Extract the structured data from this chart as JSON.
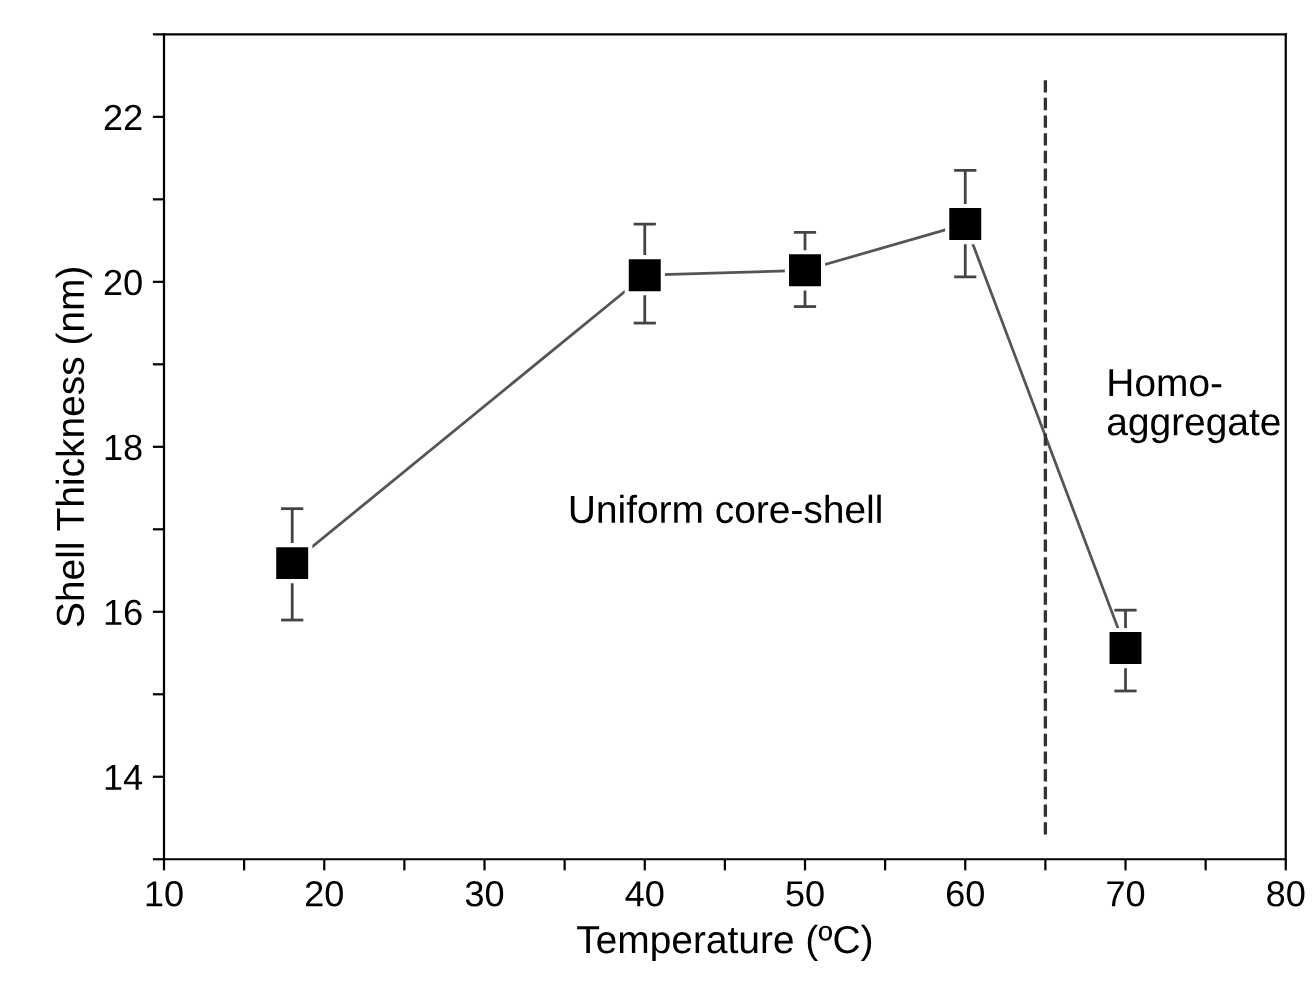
{
  "chart_data": {
    "type": "line",
    "xlabel": "Temperature (ºC)",
    "ylabel": "Shell Thickness (nm)",
    "x": [
      18,
      40,
      50,
      60,
      70
    ],
    "series": [
      {
        "color": "#000000",
        "values": [
          16.59,
          20.08,
          20.14,
          20.7,
          15.56
        ],
        "errors": [
          [
            15.9,
            17.25
          ],
          [
            19.5,
            20.7
          ],
          [
            19.7,
            20.6
          ],
          [
            20.06,
            21.35
          ],
          [
            15.04,
            16.02
          ]
        ]
      }
    ],
    "marker": "square",
    "line_style": "solid",
    "xlim": [
      10,
      80
    ],
    "xticks": [
      10,
      {
        "value": 15,
        "label": null
      },
      20,
      {
        "value": 25,
        "label": null
      },
      30,
      {
        "value": 35,
        "label": null
      },
      40,
      {
        "value": 45,
        "label": null
      },
      50,
      {
        "value": 55,
        "label": null
      },
      60,
      {
        "value": 65,
        "label": null
      },
      70,
      {
        "value": 75,
        "label": null
      },
      80
    ],
    "ylim": [
      13,
      23
    ],
    "yticks": [
      {
        "value": 13,
        "label": null
      },
      14,
      {
        "value": 15,
        "label": null
      },
      16,
      {
        "value": 17,
        "label": null
      },
      18,
      {
        "value": 19,
        "label": null
      },
      20,
      {
        "value": 21,
        "label": null
      },
      22,
      {
        "value": 23,
        "label": null
      }
    ],
    "ref_lines": [
      {
        "axis": "x",
        "value": 65,
        "line_style": "dashed",
        "color": "#333333"
      }
    ],
    "annotations": [
      "Uniform core-shell",
      "Homo-\naggregate"
    ],
    "grid": false,
    "legend": false
  }
}
